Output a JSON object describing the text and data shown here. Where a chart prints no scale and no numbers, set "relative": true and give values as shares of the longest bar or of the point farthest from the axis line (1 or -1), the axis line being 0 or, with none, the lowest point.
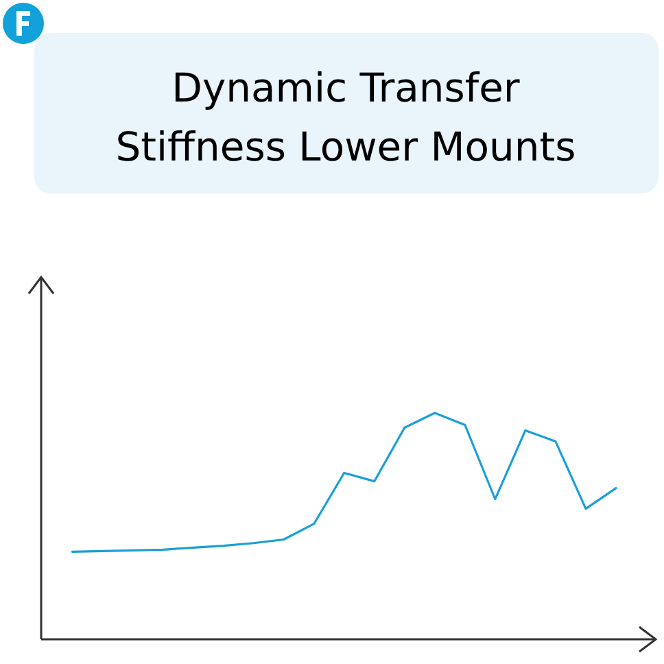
{
  "chart_data": {
    "type": "line",
    "title": "Dynamic Transfer Stiffness Lower Mounts",
    "relative": true,
    "categories": [
      null,
      null,
      null,
      null,
      null,
      null,
      null,
      null,
      null,
      null,
      null,
      null,
      null,
      null,
      null,
      null,
      null,
      null,
      null
    ],
    "series": [
      {
        "color": "#1a9fd9",
        "values": [
          0.387,
          0.39,
          0.393,
          0.396,
          0.405,
          0.413,
          0.425,
          0.441,
          0.51,
          0.735,
          0.698,
          0.935,
          1,
          0.947,
          0.619,
          0.923,
          0.874,
          0.577,
          0.668
        ]
      }
    ]
  }
}
